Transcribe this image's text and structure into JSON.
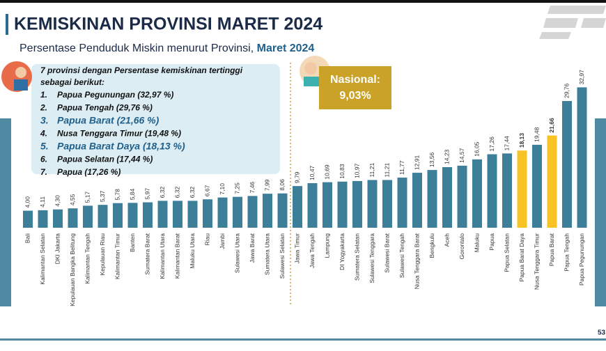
{
  "chart_data": {
    "type": "bar",
    "title": "KEMISKINAN PROVINSI MARET 2024",
    "subtitle": "Persentase Penduduk Miskin menurut Provinsi, ",
    "subtitle_highlight": "Maret 2024",
    "categories": [
      "Bali",
      "Kalimantan Selatan",
      "DKI Jakarta",
      "Kepulauan Bangka Belitung",
      "Kalimantan Tengah",
      "Kepulauan Riau",
      "Kalimantan Timur",
      "Banten",
      "Sumatera Barat",
      "Kalimantan Utara",
      "Kalimantan Barat",
      "Maluku Utara",
      "Riau",
      "Jambi",
      "Sulawesi Utara",
      "Jawa Barat",
      "Sumatera Utara",
      "Sulawesi Selatan",
      "Jawa Timur",
      "Jawa Tengah",
      "Lampung",
      "DI Yogyakarta",
      "Sumatera Selatan",
      "Sulawesi Tenggara",
      "Sulawesi Barat",
      "Sulawesi Tengah",
      "Nusa Tenggara Barat",
      "Bengkulu",
      "Aceh",
      "Gorontalo",
      "Maluku",
      "Papua",
      "Papua Selatan",
      "Papua Barat Daya",
      "Nusa Tenggara Timur",
      "Papua Barat",
      "Papua Tengah",
      "Papua Pegunungan"
    ],
    "values": [
      4.0,
      4.11,
      4.3,
      4.55,
      5.17,
      5.37,
      5.78,
      5.84,
      5.97,
      6.32,
      6.32,
      6.32,
      6.67,
      7.1,
      7.25,
      7.46,
      7.99,
      8.06,
      9.79,
      10.47,
      10.69,
      10.83,
      10.97,
      11.21,
      11.21,
      11.77,
      12.91,
      13.56,
      14.23,
      14.57,
      16.05,
      17.26,
      17.44,
      18.13,
      19.48,
      21.66,
      29.76,
      32.97
    ],
    "value_labels": [
      "4,00",
      "4,11",
      "4,30",
      "4,55",
      "5,17",
      "5,37",
      "5,78",
      "5,84",
      "5,97",
      "6,32",
      "6,32",
      "6,32",
      "6,67",
      "7,10",
      "7,25",
      "7,46",
      "7,99",
      "8,06",
      "9,79",
      "10,47",
      "10,69",
      "10,83",
      "10,97",
      "11,21",
      "11,21",
      "11,77",
      "12,91",
      "13,56",
      "14,23",
      "14,57",
      "16,05",
      "17,26",
      "17,44",
      "18,13",
      "19,48",
      "21,66",
      "29,76",
      "32,97"
    ],
    "colors": [
      "#3d7f99",
      "#3d7f99",
      "#3d7f99",
      "#3d7f99",
      "#3d7f99",
      "#3d7f99",
      "#3d7f99",
      "#3d7f99",
      "#3d7f99",
      "#3d7f99",
      "#3d7f99",
      "#3d7f99",
      "#3d7f99",
      "#3d7f99",
      "#3d7f99",
      "#3d7f99",
      "#3d7f99",
      "#3d7f99",
      "#3d7f99",
      "#3d7f99",
      "#3d7f99",
      "#3d7f99",
      "#3d7f99",
      "#3d7f99",
      "#3d7f99",
      "#3d7f99",
      "#3d7f99",
      "#3d7f99",
      "#3d7f99",
      "#3d7f99",
      "#3d7f99",
      "#3d7f99",
      "#3d7f99",
      "#f7c325",
      "#3d7f99",
      "#f7c325",
      "#3d7f99",
      "#3d7f99"
    ],
    "ylim": [
      0,
      35
    ],
    "annotation": {
      "heading": [
        "7 provinsi dengan Persentase kemiskinan tertinggi",
        "sebagai berikut:"
      ],
      "items": [
        {
          "no": "1.",
          "text": "Papua Pegunungan (32,97 %)"
        },
        {
          "no": "2.",
          "text": "Papua Tengah (29,76 %)"
        },
        {
          "no": "3.",
          "text": "Papua Barat (21,66 %)"
        },
        {
          "no": "4.",
          "text": "Nusa Tenggara Timur (19,48 %)"
        },
        {
          "no": "5.",
          "text": "Papua Barat Daya (18,13 %)"
        },
        {
          "no": "6.",
          "text": "Papua Selatan (17,44 %)"
        },
        {
          "no": "7.",
          "text": "Papua (17,26 %)"
        }
      ]
    },
    "national": {
      "label": "Nasional:",
      "value": 9.03,
      "value_label": "9,03%"
    },
    "page_number": "53"
  }
}
